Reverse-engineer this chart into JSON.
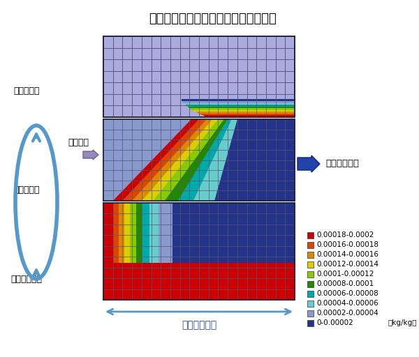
{
  "title": "除湿ロータ内の湿度シミュレーション",
  "label_regen_sector": "再生セクタ",
  "label_process_sector": "処理セクタ",
  "label_purge_sector": "パージセクタ",
  "label_process_inlet": "処理入口",
  "label_output": "超低露点給気",
  "label_width": "除湿ロータ幅",
  "legend_labels": [
    "0.00018-0.0002",
    "0.00016-0.00018",
    "0.00014-0.00016",
    "0.00012-0.00014",
    "0.0001-0.00012",
    "0.00008-0.0001",
    "0.00006-0.00008",
    "0.00004-0.00006",
    "0.00002-0.00004",
    "0-0.00002"
  ],
  "legend_unit": "【kg/kg】",
  "legend_colors": [
    "#cc0000",
    "#dd4400",
    "#dd8800",
    "#ddcc00",
    "#88cc00",
    "#228800",
    "#00aaaa",
    "#66cccc",
    "#8899cc",
    "#223388"
  ],
  "panel_bg": "#aaaadd",
  "grid_color": "#555577",
  "title_fontsize": 13
}
